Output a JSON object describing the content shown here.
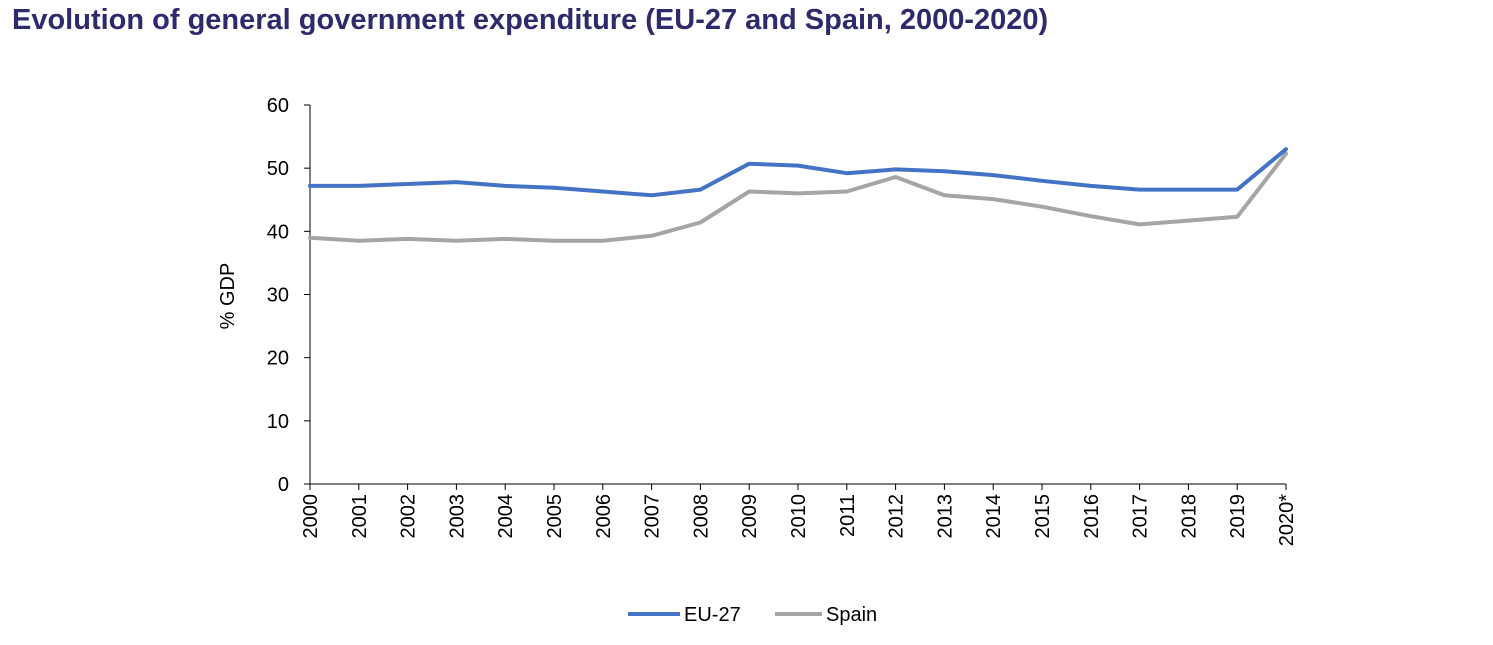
{
  "chart_data": {
    "type": "line",
    "title": "Evolution of general government expenditure (EU-27 and Spain, 2000-2020)",
    "ylabel": "% GDP",
    "xlabel": "",
    "ylim": [
      0,
      60
    ],
    "yticks": [
      0,
      10,
      20,
      30,
      40,
      50,
      60
    ],
    "categories": [
      "2000",
      "2001",
      "2002",
      "2003",
      "2004",
      "2005",
      "2006",
      "2007",
      "2008",
      "2009",
      "2010",
      "2011",
      "2012",
      "2013",
      "2014",
      "2015",
      "2016",
      "2017",
      "2018",
      "2019",
      "2020*"
    ],
    "series": [
      {
        "name": "EU-27",
        "color": "#4472c4",
        "values": [
          47.2,
          47.2,
          47.5,
          47.8,
          47.2,
          46.9,
          46.3,
          45.7,
          46.6,
          50.7,
          50.4,
          49.2,
          49.8,
          49.5,
          48.9,
          48.0,
          47.2,
          46.6,
          46.6,
          46.6,
          53.0
        ]
      },
      {
        "name": "Spain",
        "color": "#a5a5a5",
        "values": [
          39.0,
          38.5,
          38.8,
          38.5,
          38.8,
          38.5,
          38.5,
          39.3,
          41.4,
          46.3,
          46.0,
          46.3,
          48.6,
          45.7,
          45.1,
          43.9,
          42.4,
          41.1,
          41.7,
          42.3,
          52.3
        ]
      }
    ],
    "grid": false,
    "legend_position": "bottom"
  }
}
